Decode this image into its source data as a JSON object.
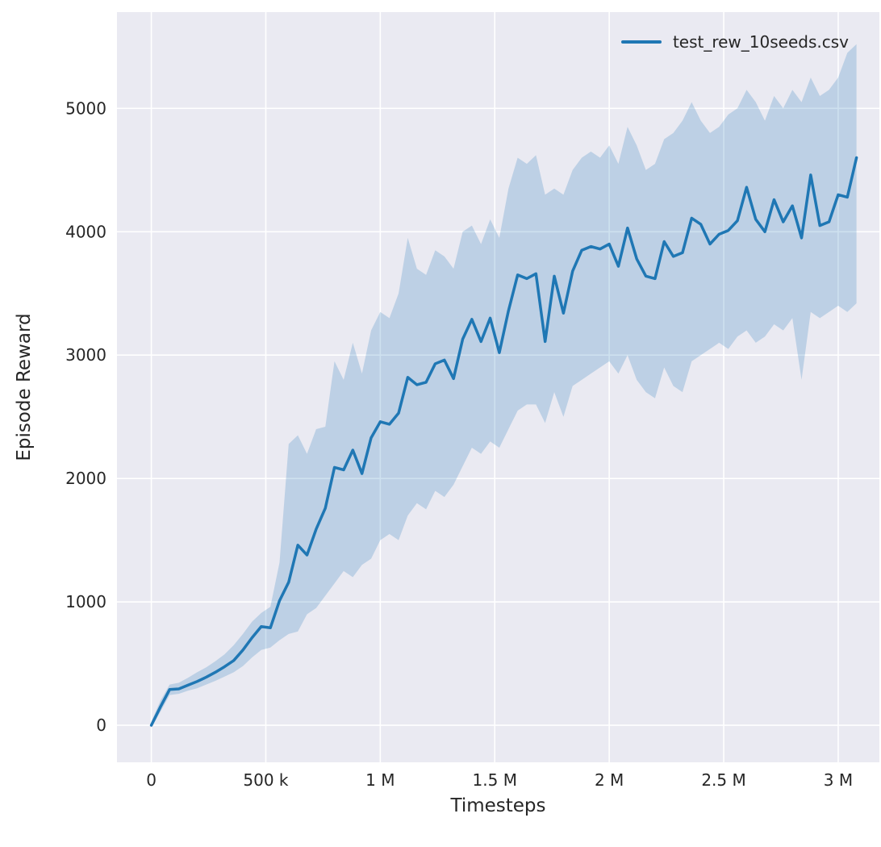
{
  "colors": {
    "axes_background": "#eaeaf2",
    "grid": "#ffffff",
    "line": "#1f77b4",
    "band": "#1f77b4",
    "text": "#262626"
  },
  "chart_data": {
    "type": "line",
    "title": "",
    "xlabel": "Timesteps",
    "ylabel": "Episode Reward",
    "grid": true,
    "legend_position": "upper right",
    "xlim": [
      -150000,
      3180000
    ],
    "ylim": [
      -300,
      5780
    ],
    "xticks": {
      "values": [
        0,
        500000,
        1000000,
        1500000,
        2000000,
        2500000,
        3000000
      ],
      "labels": [
        "0",
        "500 k",
        "1 M",
        "1.5 M",
        "2 M",
        "2.5 M",
        "3 M"
      ]
    },
    "yticks": {
      "values": [
        0,
        1000,
        2000,
        3000,
        4000,
        5000
      ],
      "labels": [
        "0",
        "1000",
        "2000",
        "3000",
        "4000",
        "5000"
      ]
    },
    "series": [
      {
        "name": "test_rew_10seeds.csv",
        "color": "#1f77b4",
        "band_color": "#1f77b4",
        "band_opacity": 0.22,
        "x": [
          0,
          40000,
          80000,
          120000,
          160000,
          200000,
          240000,
          280000,
          320000,
          360000,
          400000,
          440000,
          480000,
          520000,
          560000,
          600000,
          640000,
          680000,
          720000,
          760000,
          800000,
          840000,
          880000,
          920000,
          960000,
          1000000,
          1040000,
          1080000,
          1120000,
          1160000,
          1200000,
          1240000,
          1280000,
          1320000,
          1360000,
          1400000,
          1440000,
          1480000,
          1520000,
          1560000,
          1600000,
          1640000,
          1680000,
          1720000,
          1760000,
          1800000,
          1840000,
          1880000,
          1920000,
          1960000,
          2000000,
          2040000,
          2080000,
          2120000,
          2160000,
          2200000,
          2240000,
          2280000,
          2320000,
          2360000,
          2400000,
          2440000,
          2480000,
          2520000,
          2560000,
          2600000,
          2640000,
          2680000,
          2720000,
          2760000,
          2800000,
          2840000,
          2880000,
          2920000,
          2960000,
          3000000,
          3040000,
          3080000
        ],
        "mean": [
          0,
          150,
          290,
          295,
          325,
          355,
          390,
          430,
          475,
          525,
          610,
          710,
          800,
          790,
          1010,
          1160,
          1460,
          1380,
          1590,
          1760,
          2090,
          2070,
          2230,
          2040,
          2330,
          2460,
          2440,
          2530,
          2820,
          2760,
          2780,
          2930,
          2960,
          2810,
          3130,
          3290,
          3110,
          3300,
          3020,
          3360,
          3650,
          3620,
          3660,
          3110,
          3640,
          3340,
          3680,
          3850,
          3880,
          3860,
          3900,
          3720,
          4030,
          3780,
          3640,
          3620,
          3920,
          3800,
          3830,
          4110,
          4060,
          3900,
          3980,
          4010,
          4090,
          4360,
          4100,
          4000,
          4260,
          4080,
          4210,
          3950,
          4460,
          4050,
          4080,
          4300,
          4280,
          4600
        ],
        "lower": [
          -20,
          110,
          245,
          255,
          280,
          300,
          330,
          360,
          395,
          430,
          480,
          550,
          610,
          630,
          690,
          740,
          760,
          900,
          950,
          1050,
          1150,
          1250,
          1200,
          1300,
          1350,
          1500,
          1550,
          1500,
          1700,
          1800,
          1750,
          1900,
          1850,
          1950,
          2100,
          2250,
          2200,
          2300,
          2250,
          2400,
          2550,
          2600,
          2600,
          2450,
          2700,
          2500,
          2750,
          2800,
          2850,
          2900,
          2950,
          2850,
          3000,
          2800,
          2700,
          2650,
          2900,
          2750,
          2700,
          2950,
          3000,
          3050,
          3100,
          3050,
          3150,
          3200,
          3100,
          3150,
          3250,
          3200,
          3300,
          2800,
          3350,
          3300,
          3350,
          3400,
          3350,
          3420
        ],
        "upper": [
          30,
          200,
          330,
          345,
          385,
          430,
          470,
          520,
          575,
          650,
          740,
          840,
          910,
          960,
          1320,
          2280,
          2350,
          2200,
          2400,
          2420,
          2950,
          2800,
          3100,
          2850,
          3200,
          3350,
          3300,
          3500,
          3950,
          3700,
          3650,
          3850,
          3800,
          3700,
          4000,
          4050,
          3900,
          4100,
          3950,
          4350,
          4600,
          4550,
          4620,
          4300,
          4350,
          4300,
          4500,
          4600,
          4650,
          4600,
          4700,
          4550,
          4850,
          4700,
          4500,
          4550,
          4750,
          4800,
          4900,
          5050,
          4900,
          4800,
          4850,
          4950,
          5000,
          5150,
          5050,
          4900,
          5100,
          5000,
          5150,
          5050,
          5250,
          5100,
          5150,
          5250,
          5450,
          5520
        ]
      }
    ]
  }
}
